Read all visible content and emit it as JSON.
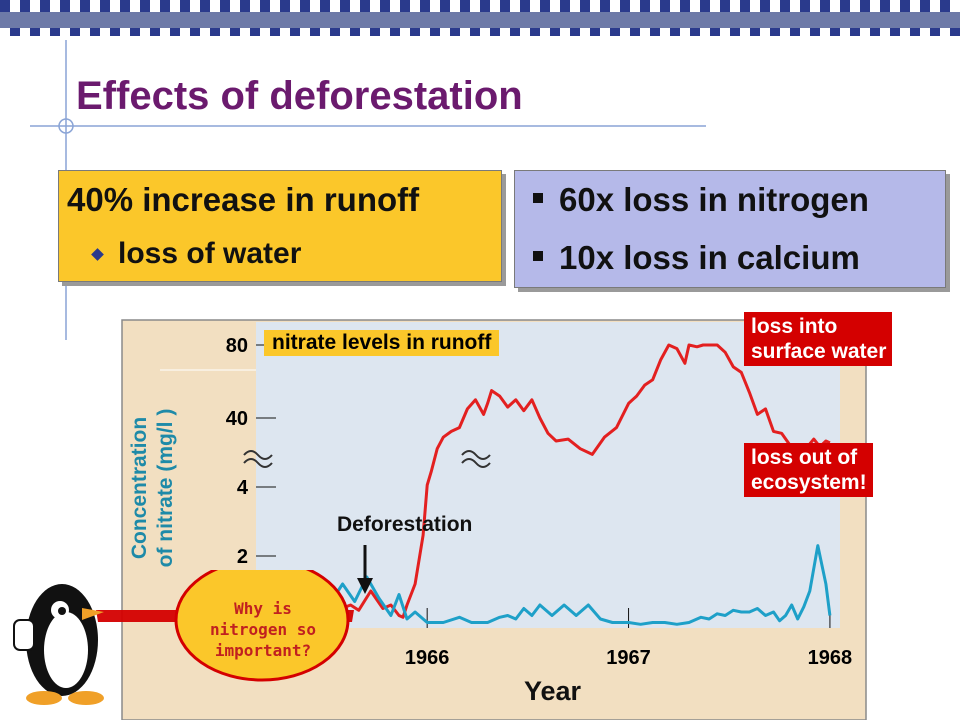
{
  "slide": {
    "title": "Effects of deforestation",
    "colors": {
      "title": "#6b1a6e",
      "top_bar": "#2a3a8c",
      "box_left": "#fbc72a",
      "box_right": "#b5b9e9",
      "label_red": "#d40000",
      "series_red": "#e32020",
      "series_blue": "#1ea0c8",
      "chart_bg": "#f2dfc1",
      "plot_bg": "#dde6f0"
    },
    "box_left": {
      "headline": "40% increase in runoff",
      "bullet": "loss of water",
      "bullet_icon": "diamond-bullet-icon"
    },
    "box_right": {
      "items": [
        "60x loss in nitrogen",
        "10x loss in calcium"
      ],
      "bullet_icon": "square-bullet-icon"
    },
    "callouts": {
      "surface_water": "loss into\nsurface water",
      "ecosystem": "loss out of\necosystem!"
    },
    "speech_bubble": {
      "text": "Why is\nnitrogen so\nimportant?",
      "icon": "penguin-mascot-icon"
    }
  },
  "chart_data": {
    "type": "line",
    "title": "nitrate levels in runoff",
    "xlabel": "Year",
    "ylabel": "Concentration\nof nitrate (mg/l )",
    "y_ticks": [
      "80",
      "40",
      "4",
      "2"
    ],
    "x_ticks": [
      "1966",
      "1967",
      "1968"
    ],
    "annotation": "Deforestation",
    "axis_break": true,
    "xlim": [
      1965.15,
      1968.05
    ],
    "series": [
      {
        "color": "#e32020",
        "x": [
          1965.25,
          1965.3,
          1965.35,
          1965.38,
          1965.42,
          1965.45,
          1965.5,
          1965.55,
          1965.62,
          1965.66,
          1965.72,
          1965.78,
          1965.82,
          1965.86,
          1965.88,
          1965.9,
          1965.94,
          1965.98,
          1966.0,
          1966.02,
          1966.05,
          1966.08,
          1966.12,
          1966.16,
          1966.2,
          1966.24,
          1966.28,
          1966.3,
          1966.32,
          1966.36,
          1966.4,
          1966.44,
          1966.48,
          1966.52,
          1966.56,
          1966.6,
          1966.64,
          1966.7,
          1966.76,
          1966.82,
          1966.88,
          1966.94,
          1967.0,
          1967.04,
          1967.08,
          1967.12,
          1967.16,
          1967.2,
          1967.24,
          1967.28,
          1967.3,
          1967.34,
          1967.37,
          1967.4,
          1967.44,
          1967.48,
          1967.52,
          1967.56,
          1967.6,
          1967.64,
          1967.68,
          1967.72,
          1967.76,
          1967.8,
          1967.84,
          1967.88,
          1967.92,
          1967.95,
          1967.98,
          1968.0
        ],
        "y": [
          0.3,
          0.4,
          0.35,
          0.5,
          0.4,
          0.9,
          0.55,
          0.45,
          0.6,
          0.45,
          1.0,
          0.5,
          0.6,
          0.3,
          0.25,
          0.6,
          1.2,
          2.6,
          5.0,
          12,
          24,
          30,
          33,
          35,
          45,
          50,
          42,
          48,
          55,
          52,
          46,
          50,
          44,
          50,
          40,
          32,
          28,
          29,
          24,
          21,
          30,
          35,
          48,
          52,
          58,
          61,
          72,
          80,
          78,
          70,
          84,
          79,
          88,
          80,
          85,
          76,
          68,
          65,
          54,
          42,
          45,
          33,
          32,
          26,
          26,
          24,
          29,
          25,
          28,
          27
        ]
      },
      {
        "color": "#1ea0c8",
        "x": [
          1965.36,
          1965.42,
          1965.5,
          1965.58,
          1965.64,
          1965.7,
          1965.76,
          1965.82,
          1965.86,
          1965.9,
          1965.94,
          1966.0,
          1966.08,
          1966.16,
          1966.22,
          1966.3,
          1966.36,
          1966.4,
          1966.44,
          1966.48,
          1966.52,
          1966.56,
          1966.62,
          1966.68,
          1966.74,
          1966.8,
          1966.86,
          1966.92,
          1967.0,
          1967.06,
          1967.12,
          1967.18,
          1967.24,
          1967.3,
          1967.36,
          1967.4,
          1967.44,
          1967.48,
          1967.52,
          1967.56,
          1967.6,
          1967.64,
          1967.68,
          1967.72,
          1967.75,
          1967.78,
          1967.81,
          1967.84,
          1967.87,
          1967.9,
          1967.94,
          1967.98,
          1968.0
        ],
        "y": [
          0.5,
          0.7,
          0.5,
          1.2,
          0.7,
          1.4,
          0.8,
          0.3,
          0.9,
          0.2,
          0.4,
          0.1,
          0.1,
          0.25,
          0.1,
          0.1,
          0.25,
          0.3,
          0.2,
          0.5,
          0.3,
          0.6,
          0.3,
          0.6,
          0.3,
          0.6,
          0.2,
          0.1,
          0.1,
          0.05,
          0.1,
          0.1,
          0.05,
          0.1,
          0.25,
          0.2,
          0.35,
          0.3,
          0.45,
          0.4,
          0.4,
          0.5,
          0.3,
          0.4,
          0.15,
          0.3,
          0.6,
          0.2,
          0.55,
          1.0,
          2.3,
          1.2,
          0.3
        ]
      }
    ]
  }
}
